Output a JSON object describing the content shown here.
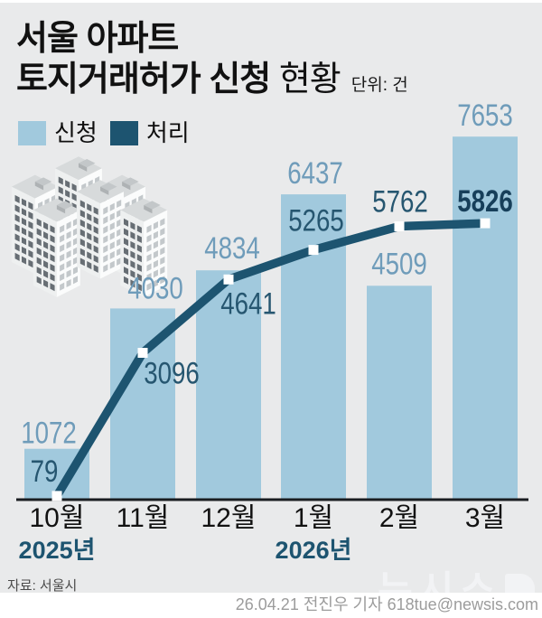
{
  "title": {
    "line1": "서울 아파트",
    "line2_bold": "토지거래허가 신청",
    "line2_light": "현황",
    "unit": "단위: 건"
  },
  "legend": {
    "items": [
      {
        "label": "신청",
        "color": "#a1c9dd"
      },
      {
        "label": "처리",
        "color": "#1d5470"
      }
    ]
  },
  "chart_data": {
    "type": "bar",
    "title": "서울 아파트 토지거래허가 신청 현황",
    "unit": "건",
    "categories": [
      "10월",
      "11월",
      "12월",
      "1월",
      "2월",
      "3월"
    ],
    "series": [
      {
        "name": "신청",
        "type": "bar",
        "color": "#a1c9dd",
        "label_color": "#6f9cba",
        "values": [
          1072,
          4030,
          4834,
          6437,
          4509,
          7653
        ]
      },
      {
        "name": "처리",
        "type": "line",
        "color": "#1d5470",
        "label_color": "#265670",
        "values": [
          79,
          3096,
          4641,
          5265,
          5762,
          5826
        ],
        "last_label_style": {
          "bold": true,
          "color": "#173f5a"
        }
      }
    ],
    "ylim": [
      0,
      7900
    ],
    "grid": false,
    "legend_position": "top-left",
    "year_labels": [
      {
        "label": "2025년",
        "index": 0
      },
      {
        "label": "2026년",
        "index": 3
      }
    ],
    "year_color": "#1d5470",
    "month_color": "#121212",
    "axis_color": "#1a1d21",
    "layout_hints": {
      "bar_label_dx": [
        -9,
        14,
        4,
        2,
        0,
        0
      ],
      "bar_label_dy": [
        -6,
        -11,
        -13,
        -12,
        -13,
        -12
      ],
      "line_label_dx": [
        -14,
        32,
        22,
        3,
        1,
        0
      ],
      "line_label_dy": [
        -16,
        34,
        38,
        -21,
        -16,
        -13
      ]
    }
  },
  "footer": {
    "source": "자료: 서울시",
    "byline": "26.04.21 전진우 기자 618tue@newsis.com",
    "watermark": "뉴시스"
  }
}
